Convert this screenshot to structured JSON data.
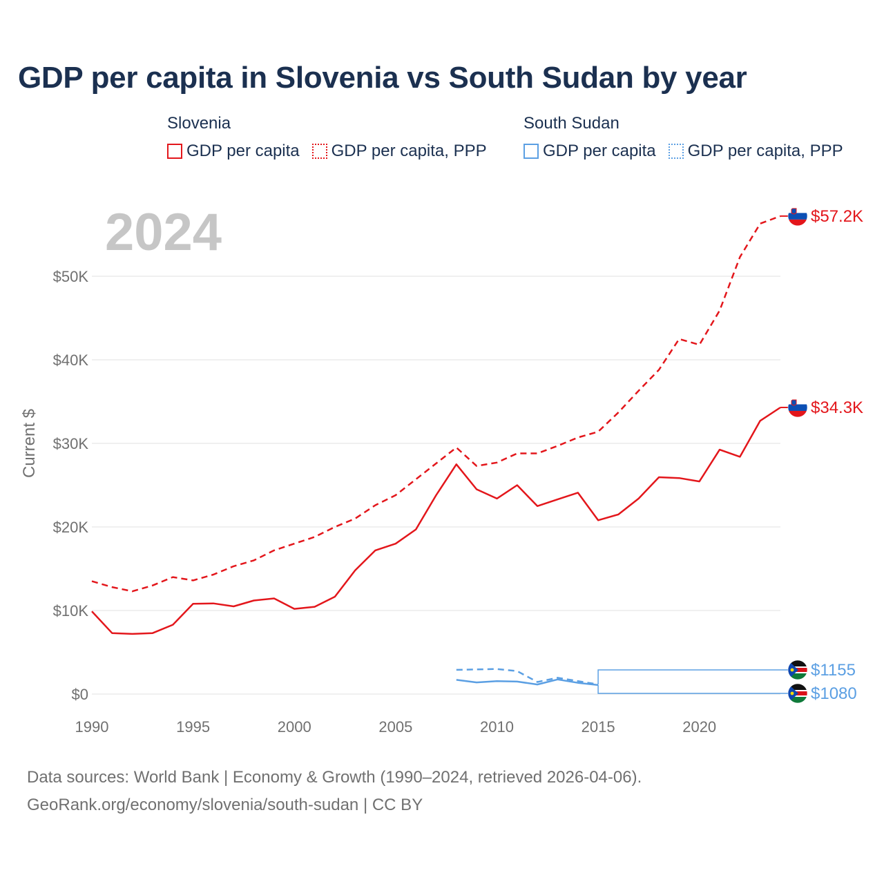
{
  "colors": {
    "slovenia": "#e3161b",
    "south_sudan": "#5b9fe3",
    "grid": "#e2e2e2",
    "text": "#1b3050",
    "muted": "#707070"
  },
  "legend": {
    "slovenia": {
      "country": "Slovenia",
      "gdp": "GDP per capita",
      "ppp": "GDP per capita, PPP"
    },
    "south_sudan": {
      "country": "South Sudan",
      "gdp": "GDP per capita",
      "ppp": "GDP per capita, PPP"
    }
  },
  "footer": {
    "line1": "Data sources: World Bank | Economy & Growth (1990–2024, retrieved 2026-04-06).",
    "line2": "GeoRank.org/economy/slovenia/south-sudan | CC BY"
  },
  "flags": {
    "slovenia": "slovenia-flag-icon",
    "south_sudan": "south-sudan-flag-icon"
  },
  "chart_data": {
    "type": "line",
    "title": "GDP per capita in Slovenia vs South Sudan by year",
    "year_label": "2024",
    "ylabel": "Current $",
    "xlabel": "",
    "ylim": [
      0,
      57200
    ],
    "xlim": [
      1990,
      2024
    ],
    "grid": true,
    "x_ticks": [
      1990,
      1995,
      2000,
      2005,
      2010,
      2015,
      2020
    ],
    "x_tick_labels": [
      "1990",
      "1995",
      "2000",
      "2005",
      "2010",
      "2015",
      "2020"
    ],
    "y_ticks": [
      0,
      10000,
      20000,
      30000,
      40000,
      50000
    ],
    "y_tick_labels": [
      "$0",
      "$10K",
      "$20K",
      "$30K",
      "$40K",
      "$50K"
    ],
    "series": [
      {
        "name": "Slovenia GDP per capita",
        "country": "slovenia",
        "style": "solid",
        "x": [
          1990,
          1991,
          1992,
          1993,
          1994,
          1995,
          1996,
          1997,
          1998,
          1999,
          2000,
          2001,
          2002,
          2003,
          2004,
          2005,
          2006,
          2007,
          2008,
          2009,
          2010,
          2011,
          2012,
          2013,
          2014,
          2015,
          2016,
          2017,
          2018,
          2019,
          2020,
          2021,
          2022,
          2023,
          2024
        ],
        "values": [
          9900,
          7300,
          7200,
          7300,
          8300,
          10800,
          10850,
          10500,
          11200,
          11450,
          10200,
          10450,
          11650,
          14800,
          17200,
          18000,
          19700,
          23800,
          27500,
          24500,
          23400,
          25000,
          22500,
          23300,
          24100,
          20800,
          21500,
          23400,
          25950,
          25850,
          25450,
          29250,
          28400,
          32700,
          34300
        ],
        "end_label": "$34.3K"
      },
      {
        "name": "Slovenia GDP per capita, PPP",
        "country": "slovenia",
        "style": "dashed",
        "x": [
          1990,
          1991,
          1992,
          1993,
          1994,
          1995,
          1996,
          1997,
          1998,
          1999,
          2000,
          2001,
          2002,
          2003,
          2004,
          2005,
          2006,
          2007,
          2008,
          2009,
          2010,
          2011,
          2012,
          2013,
          2014,
          2015,
          2016,
          2017,
          2018,
          2019,
          2020,
          2021,
          2022,
          2023,
          2024
        ],
        "values": [
          13500,
          12800,
          12300,
          13000,
          14000,
          13600,
          14300,
          15300,
          16000,
          17200,
          18000,
          18800,
          20000,
          21000,
          22600,
          23800,
          25700,
          27600,
          29500,
          27300,
          27700,
          28800,
          28800,
          29700,
          30700,
          31400,
          33700,
          36300,
          38800,
          42500,
          41800,
          45900,
          52300,
          56300,
          57200
        ],
        "end_label": "$57.2K"
      },
      {
        "name": "South Sudan GDP per capita",
        "country": "south_sudan",
        "style": "solid",
        "x": [
          2008,
          2009,
          2010,
          2011,
          2012,
          2013,
          2014,
          2015
        ],
        "values": [
          1700,
          1400,
          1550,
          1500,
          1150,
          1750,
          1350,
          1080
        ],
        "end_label": "$1080"
      },
      {
        "name": "South Sudan GDP per capita, PPP",
        "country": "south_sudan",
        "style": "dashed",
        "x": [
          2008,
          2009,
          2010,
          2011,
          2012,
          2013,
          2014,
          2015
        ],
        "values": [
          2900,
          2950,
          3000,
          2750,
          1450,
          1950,
          1550,
          1155
        ],
        "end_label": "$1155"
      }
    ]
  }
}
